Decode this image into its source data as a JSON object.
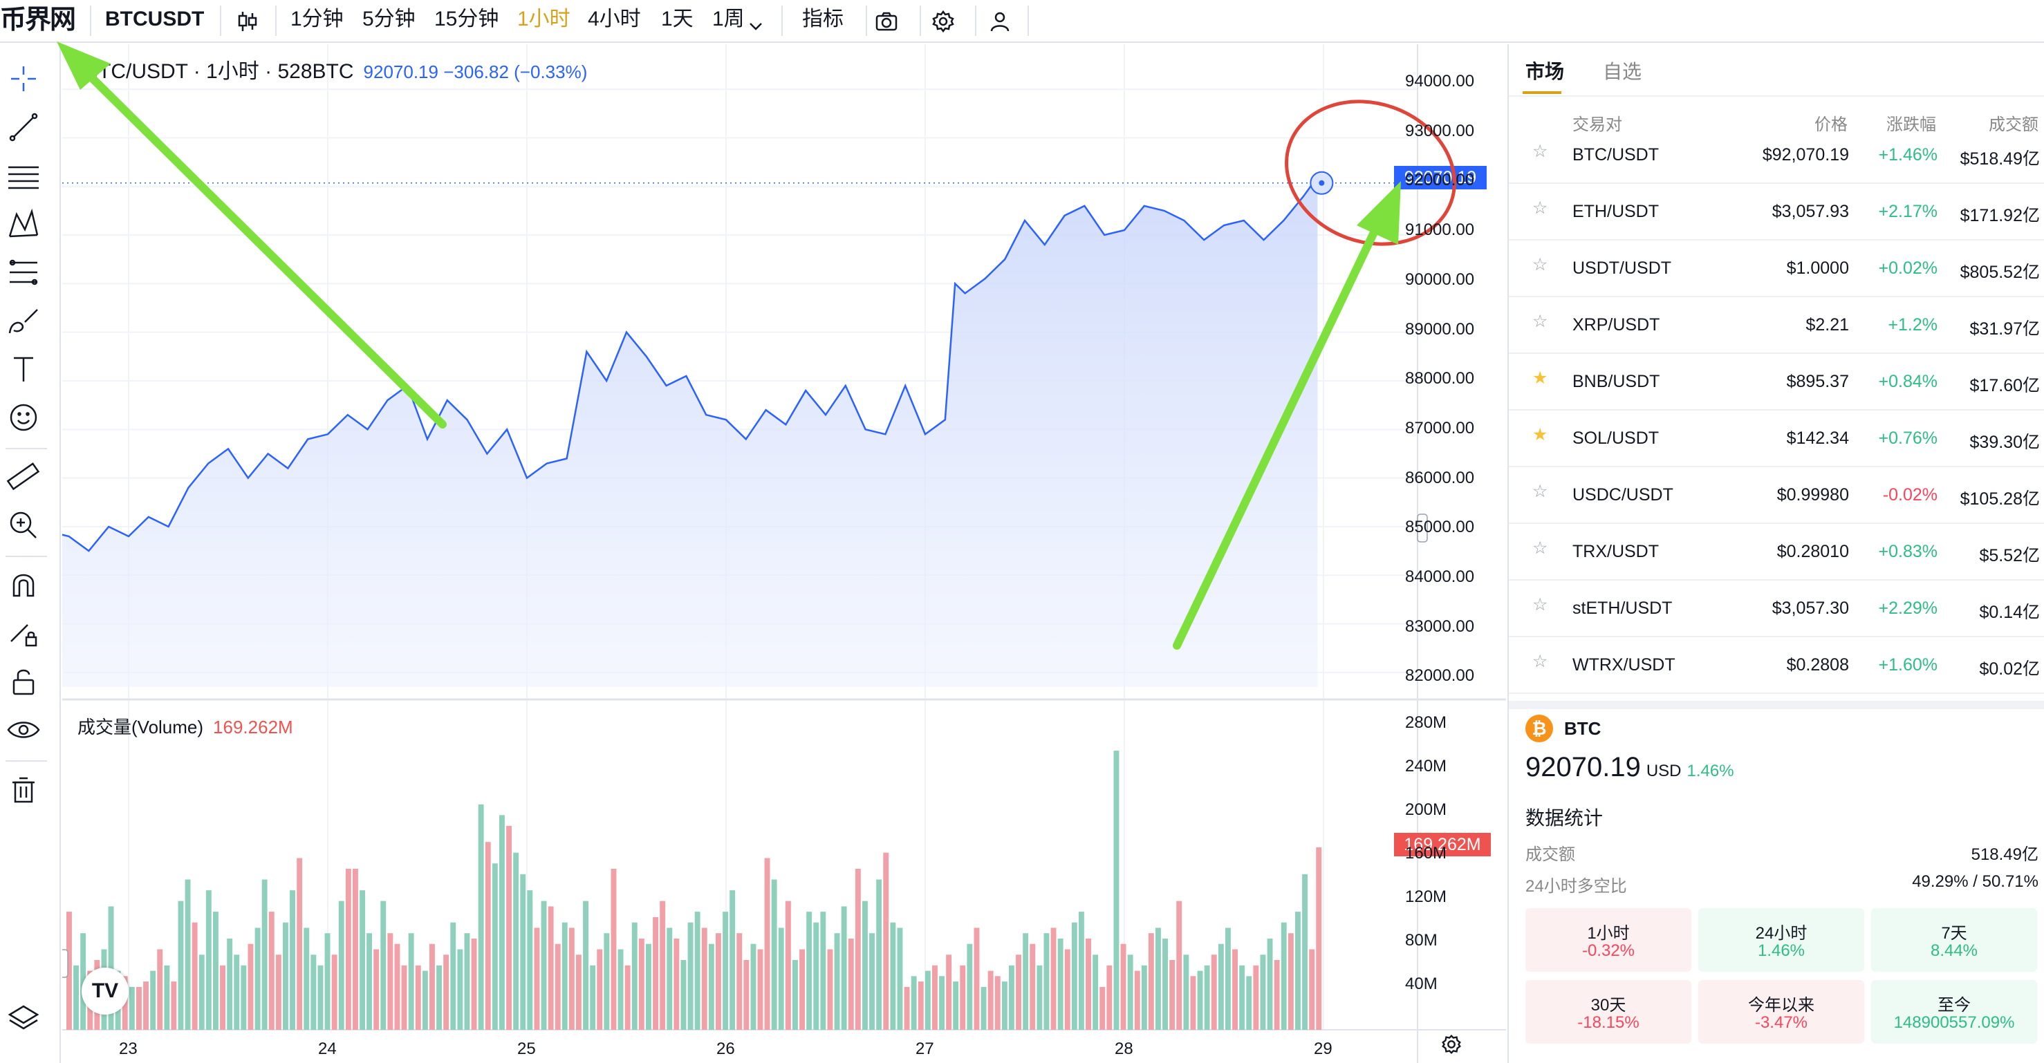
{
  "topbar": {
    "logo": "币界网",
    "symbol": "BTCUSDT",
    "intervals": [
      "1分钟",
      "5分钟",
      "15分钟",
      "1小时",
      "4小时",
      "1天",
      "1周"
    ],
    "active_interval": "1小时",
    "indicators_label": "指标"
  },
  "legend": {
    "title": "BTC/USDT · 1小时 · 528BTC",
    "price": "92070.19",
    "change": "−306.82 (−0.33%)"
  },
  "volume_legend": {
    "label": "成交量(Volume)",
    "value": "169.262M"
  },
  "price_axis": [
    "94000.00",
    "93000.00",
    "92000.00",
    "91000.00",
    "90000.00",
    "89000.00",
    "88000.00",
    "87000.00",
    "86000.00",
    "85000.00",
    "84000.00",
    "83000.00",
    "82000.00"
  ],
  "price_tag": "92070.19",
  "volume_axis": [
    "280M",
    "240M",
    "200M",
    "160M",
    "120M",
    "80M",
    "40M"
  ],
  "volume_tag": "169.262M",
  "time_axis": [
    "23",
    "24",
    "25",
    "26",
    "27",
    "28",
    "29"
  ],
  "tv_logo": "TV",
  "chart_data": {
    "type": "area",
    "title": "BTC/USDT · 1小时 · 528BTC",
    "ylim": [
      81700,
      94300
    ],
    "x_ticks": [
      "23",
      "24",
      "25",
      "26",
      "27",
      "28",
      "29"
    ],
    "price_points": [
      [
        22.02,
        84000
      ],
      [
        22.1,
        83850
      ],
      [
        22.2,
        84300
      ],
      [
        22.3,
        84200
      ],
      [
        22.4,
        84700
      ],
      [
        22.5,
        84600
      ],
      [
        22.6,
        84900
      ],
      [
        22.7,
        84800
      ],
      [
        22.8,
        84500
      ],
      [
        22.9,
        85000
      ],
      [
        23.0,
        84800
      ],
      [
        23.1,
        85200
      ],
      [
        23.2,
        85000
      ],
      [
        23.3,
        85800
      ],
      [
        23.4,
        86300
      ],
      [
        23.5,
        86600
      ],
      [
        23.6,
        86000
      ],
      [
        23.7,
        86500
      ],
      [
        23.8,
        86200
      ],
      [
        23.9,
        86800
      ],
      [
        24.0,
        86900
      ],
      [
        24.1,
        87300
      ],
      [
        24.2,
        87000
      ],
      [
        24.3,
        87600
      ],
      [
        24.4,
        87900
      ],
      [
        24.5,
        86800
      ],
      [
        24.6,
        87600
      ],
      [
        24.7,
        87200
      ],
      [
        24.8,
        86500
      ],
      [
        24.9,
        87000
      ],
      [
        25.0,
        86000
      ],
      [
        25.1,
        86300
      ],
      [
        25.2,
        86400
      ],
      [
        25.3,
        88600
      ],
      [
        25.4,
        88000
      ],
      [
        25.5,
        89000
      ],
      [
        25.6,
        88500
      ],
      [
        25.7,
        87900
      ],
      [
        25.8,
        88100
      ],
      [
        25.9,
        87300
      ],
      [
        26.0,
        87200
      ],
      [
        26.1,
        86800
      ],
      [
        26.2,
        87400
      ],
      [
        26.3,
        87100
      ],
      [
        26.4,
        87800
      ],
      [
        26.5,
        87300
      ],
      [
        26.6,
        87900
      ],
      [
        26.7,
        87000
      ],
      [
        26.8,
        86900
      ],
      [
        26.9,
        87900
      ],
      [
        27.0,
        86900
      ],
      [
        27.1,
        87200
      ],
      [
        27.15,
        90000
      ],
      [
        27.2,
        89800
      ],
      [
        27.3,
        90100
      ],
      [
        27.4,
        90500
      ],
      [
        27.5,
        91300
      ],
      [
        27.6,
        90800
      ],
      [
        27.7,
        91400
      ],
      [
        27.8,
        91600
      ],
      [
        27.9,
        91000
      ],
      [
        28.0,
        91100
      ],
      [
        28.1,
        91600
      ],
      [
        28.2,
        91500
      ],
      [
        28.3,
        91300
      ],
      [
        28.4,
        90900
      ],
      [
        28.5,
        91200
      ],
      [
        28.6,
        91300
      ],
      [
        28.7,
        90900
      ],
      [
        28.8,
        91300
      ],
      [
        28.9,
        91800
      ],
      [
        28.97,
        92200
      ]
    ],
    "last_price": 92070.19,
    "volume_series_name": "成交量(Volume)",
    "volume_ylim": [
      0,
      300
    ],
    "volume_unit": "M",
    "volume_bars": [
      [
        110,
        "dn"
      ],
      [
        60,
        "up"
      ],
      [
        90,
        "up"
      ],
      [
        55,
        "dn"
      ],
      [
        65,
        "dn"
      ],
      [
        75,
        "up"
      ],
      [
        115,
        "up"
      ],
      [
        55,
        "up"
      ],
      [
        50,
        "dn"
      ],
      [
        40,
        "up"
      ],
      [
        40,
        "dn"
      ],
      [
        45,
        "dn"
      ],
      [
        55,
        "up"
      ],
      [
        75,
        "dn"
      ],
      [
        60,
        "up"
      ],
      [
        45,
        "dn"
      ],
      [
        120,
        "up"
      ],
      [
        140,
        "up"
      ],
      [
        100,
        "dn"
      ],
      [
        70,
        "up"
      ],
      [
        130,
        "up"
      ],
      [
        110,
        "up"
      ],
      [
        60,
        "dn"
      ],
      [
        85,
        "up"
      ],
      [
        70,
        "up"
      ],
      [
        60,
        "up"
      ],
      [
        80,
        "dn"
      ],
      [
        95,
        "up"
      ],
      [
        140,
        "up"
      ],
      [
        110,
        "dn"
      ],
      [
        70,
        "dn"
      ],
      [
        100,
        "up"
      ],
      [
        130,
        "up"
      ],
      [
        160,
        "dn"
      ],
      [
        95,
        "up"
      ],
      [
        70,
        "up"
      ],
      [
        60,
        "up"
      ],
      [
        90,
        "up"
      ],
      [
        70,
        "dn"
      ],
      [
        120,
        "up"
      ],
      [
        150,
        "dn"
      ],
      [
        150,
        "dn"
      ],
      [
        130,
        "up"
      ],
      [
        90,
        "up"
      ],
      [
        75,
        "dn"
      ],
      [
        120,
        "up"
      ],
      [
        90,
        "dn"
      ],
      [
        80,
        "dn"
      ],
      [
        60,
        "dn"
      ],
      [
        90,
        "up"
      ],
      [
        60,
        "dn"
      ],
      [
        55,
        "up"
      ],
      [
        80,
        "dn"
      ],
      [
        60,
        "up"
      ],
      [
        70,
        "dn"
      ],
      [
        100,
        "up"
      ],
      [
        75,
        "up"
      ],
      [
        90,
        "up"
      ],
      [
        85,
        "dn"
      ],
      [
        210,
        "up"
      ],
      [
        175,
        "dn"
      ],
      [
        155,
        "up"
      ],
      [
        200,
        "up"
      ],
      [
        190,
        "dn"
      ],
      [
        165,
        "up"
      ],
      [
        145,
        "up"
      ],
      [
        130,
        "up"
      ],
      [
        95,
        "dn"
      ],
      [
        120,
        "up"
      ],
      [
        115,
        "dn"
      ],
      [
        80,
        "dn"
      ],
      [
        100,
        "up"
      ],
      [
        95,
        "dn"
      ],
      [
        70,
        "dn"
      ],
      [
        120,
        "up"
      ],
      [
        60,
        "up"
      ],
      [
        75,
        "dn"
      ],
      [
        90,
        "up"
      ],
      [
        150,
        "dn"
      ],
      [
        75,
        "up"
      ],
      [
        60,
        "dn"
      ],
      [
        100,
        "up"
      ],
      [
        85,
        "dn"
      ],
      [
        80,
        "up"
      ],
      [
        105,
        "dn"
      ],
      [
        120,
        "dn"
      ],
      [
        95,
        "up"
      ],
      [
        85,
        "dn"
      ],
      [
        65,
        "up"
      ],
      [
        100,
        "up"
      ],
      [
        110,
        "up"
      ],
      [
        95,
        "dn"
      ],
      [
        80,
        "up"
      ],
      [
        90,
        "dn"
      ],
      [
        110,
        "up"
      ],
      [
        130,
        "up"
      ],
      [
        90,
        "dn"
      ],
      [
        65,
        "dn"
      ],
      [
        80,
        "up"
      ],
      [
        75,
        "dn"
      ],
      [
        160,
        "dn"
      ],
      [
        140,
        "up"
      ],
      [
        95,
        "up"
      ],
      [
        120,
        "dn"
      ],
      [
        65,
        "up"
      ],
      [
        75,
        "dn"
      ],
      [
        110,
        "up"
      ],
      [
        100,
        "up"
      ],
      [
        110,
        "up"
      ],
      [
        75,
        "dn"
      ],
      [
        90,
        "up"
      ],
      [
        115,
        "up"
      ],
      [
        85,
        "dn"
      ],
      [
        150,
        "dn"
      ],
      [
        120,
        "up"
      ],
      [
        90,
        "up"
      ],
      [
        140,
        "up"
      ],
      [
        165,
        "dn"
      ],
      [
        100,
        "up"
      ],
      [
        95,
        "up"
      ],
      [
        40,
        "dn"
      ],
      [
        50,
        "up"
      ],
      [
        45,
        "dn"
      ],
      [
        55,
        "up"
      ],
      [
        60,
        "dn"
      ],
      [
        50,
        "up"
      ],
      [
        70,
        "dn"
      ],
      [
        45,
        "up"
      ],
      [
        60,
        "dn"
      ],
      [
        80,
        "up"
      ],
      [
        95,
        "dn"
      ],
      [
        40,
        "up"
      ],
      [
        55,
        "dn"
      ],
      [
        50,
        "dn"
      ],
      [
        45,
        "up"
      ],
      [
        60,
        "up"
      ],
      [
        70,
        "dn"
      ],
      [
        90,
        "up"
      ],
      [
        80,
        "dn"
      ],
      [
        60,
        "up"
      ],
      [
        90,
        "up"
      ],
      [
        95,
        "dn"
      ],
      [
        85,
        "up"
      ],
      [
        75,
        "dn"
      ],
      [
        100,
        "up"
      ],
      [
        110,
        "up"
      ],
      [
        85,
        "dn"
      ],
      [
        70,
        "up"
      ],
      [
        40,
        "dn"
      ],
      [
        60,
        "dn"
      ],
      [
        260,
        "up"
      ],
      [
        80,
        "dn"
      ],
      [
        70,
        "up"
      ],
      [
        55,
        "dn"
      ],
      [
        60,
        "up"
      ],
      [
        90,
        "dn"
      ],
      [
        95,
        "up"
      ],
      [
        85,
        "up"
      ],
      [
        65,
        "dn"
      ],
      [
        120,
        "dn"
      ],
      [
        70,
        "up"
      ],
      [
        50,
        "dn"
      ],
      [
        55,
        "up"
      ],
      [
        60,
        "up"
      ],
      [
        70,
        "dn"
      ],
      [
        80,
        "up"
      ],
      [
        95,
        "up"
      ],
      [
        75,
        "dn"
      ],
      [
        60,
        "up"
      ],
      [
        50,
        "up"
      ],
      [
        60,
        "dn"
      ],
      [
        70,
        "up"
      ],
      [
        85,
        "up"
      ],
      [
        65,
        "dn"
      ],
      [
        100,
        "up"
      ],
      [
        90,
        "dn"
      ],
      [
        110,
        "up"
      ],
      [
        145,
        "up"
      ],
      [
        75,
        "dn"
      ],
      [
        170,
        "dn"
      ]
    ]
  },
  "market": {
    "tabs": [
      "市场",
      "自选"
    ],
    "headers": {
      "pair": "交易对",
      "price": "价格",
      "change": "涨跌幅",
      "volume": "成交额"
    },
    "rows": [
      {
        "pair": "BTC/USDT",
        "price": "$92,070.19",
        "change": "+1.46%",
        "volume": "$518.49亿",
        "dir": "up",
        "fav": false
      },
      {
        "pair": "ETH/USDT",
        "price": "$3,057.93",
        "change": "+2.17%",
        "volume": "$171.92亿",
        "dir": "up",
        "fav": false
      },
      {
        "pair": "USDT/USDT",
        "price": "$1.0000",
        "change": "+0.02%",
        "volume": "$805.52亿",
        "dir": "up",
        "fav": false
      },
      {
        "pair": "XRP/USDT",
        "price": "$2.21",
        "change": "+1.2%",
        "volume": "$31.97亿",
        "dir": "up",
        "fav": false
      },
      {
        "pair": "BNB/USDT",
        "price": "$895.37",
        "change": "+0.84%",
        "volume": "$17.60亿",
        "dir": "up",
        "fav": true
      },
      {
        "pair": "SOL/USDT",
        "price": "$142.34",
        "change": "+0.76%",
        "volume": "$39.30亿",
        "dir": "up",
        "fav": true
      },
      {
        "pair": "USDC/USDT",
        "price": "$0.99980",
        "change": "-0.02%",
        "volume": "$105.28亿",
        "dir": "dn",
        "fav": false
      },
      {
        "pair": "TRX/USDT",
        "price": "$0.28010",
        "change": "+0.83%",
        "volume": "$5.52亿",
        "dir": "up",
        "fav": false
      },
      {
        "pair": "stETH/USDT",
        "price": "$3,057.30",
        "change": "+2.29%",
        "volume": "$0.14亿",
        "dir": "up",
        "fav": false
      },
      {
        "pair": "WTRX/USDT",
        "price": "$0.2808",
        "change": "+1.60%",
        "volume": "$0.02亿",
        "dir": "up",
        "fav": false
      }
    ]
  },
  "coin": {
    "symbol_letter": "₿",
    "name": "BTC",
    "price": "92070.19",
    "currency": "USD",
    "change": "1.46%",
    "stats_title": "数据统计",
    "stats": [
      {
        "label": "成交额",
        "value": "518.49亿"
      },
      {
        "label": "24小时多空比",
        "value": "49.29% / 50.71%"
      }
    ],
    "periods": [
      {
        "label": "1小时",
        "value": "-0.32%",
        "dir": "neg"
      },
      {
        "label": "24小时",
        "value": "1.46%",
        "dir": "pos"
      },
      {
        "label": "7天",
        "value": "8.44%",
        "dir": "pos"
      },
      {
        "label": "30天",
        "value": "-18.15%",
        "dir": "neg"
      },
      {
        "label": "今年以来",
        "value": "-3.47%",
        "dir": "neg"
      },
      {
        "label": "至今",
        "value": "148900557.09%",
        "dir": "pos"
      }
    ]
  },
  "colors": {
    "up": "#2ebd85",
    "down": "#f6465d",
    "line": "#2962ff",
    "vol_up": "#8fd0bd",
    "vol_down": "#f0a0a6",
    "accent": "#d6a21a",
    "annotation_arrow": "#7ee03c",
    "annotation_circle": "#e0453a"
  },
  "icons": [
    "candlestick-icon",
    "chevron-down-icon",
    "camera-icon",
    "gear-icon",
    "user-icon",
    "crosshair-icon",
    "trend-line-icon",
    "fib-icon",
    "pattern-icon",
    "projection-icon",
    "brush-icon",
    "text-icon",
    "emoji-icon",
    "ruler-icon",
    "zoom-icon",
    "magnet-icon",
    "lock-pencil-icon",
    "unlock-icon",
    "eye-icon",
    "trash-icon",
    "layers-icon",
    "settings-icon"
  ]
}
